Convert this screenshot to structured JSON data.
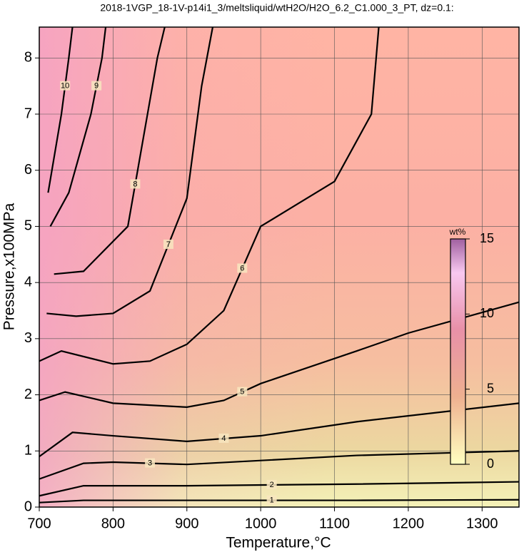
{
  "chart_data": {
    "type": "contour",
    "title": "2018-1VGP_18-1V-p14i1_3/meltsliquid/wtH2O/H2O_6.2_C1.000_3_PT, dz=0.1:",
    "x_label": "Temperature,°C",
    "y_label": "Pressure,x100MPa",
    "xlim": [
      700,
      1350
    ],
    "ylim": [
      0,
      8.55
    ],
    "xticks": [
      700,
      800,
      900,
      1000,
      1100,
      1200,
      1300
    ],
    "yticks": [
      0,
      1,
      2,
      3,
      4,
      5,
      6,
      7,
      8
    ],
    "grid": true,
    "contours": [
      {
        "level": 1,
        "x": [
          700,
          760,
          900,
          1130,
          1350
        ],
        "y": [
          0.08,
          0.12,
          0.12,
          0.12,
          0.13
        ]
      },
      {
        "level": 2,
        "x": [
          700,
          760,
          900,
          1130,
          1350
        ],
        "y": [
          0.2,
          0.38,
          0.38,
          0.41,
          0.45
        ]
      },
      {
        "level": 3,
        "x": [
          700,
          760,
          800,
          900,
          1130,
          1350
        ],
        "y": [
          0.5,
          0.78,
          0.8,
          0.76,
          0.92,
          1.0
        ]
      },
      {
        "level": 4,
        "x": [
          700,
          745,
          800,
          900,
          1000,
          1130,
          1350
        ],
        "y": [
          0.9,
          1.33,
          1.27,
          1.17,
          1.27,
          1.52,
          1.85
        ]
      },
      {
        "level": 5,
        "x": [
          700,
          735,
          800,
          900,
          950,
          1000,
          1130,
          1200,
          1350
        ],
        "y": [
          1.9,
          2.05,
          1.85,
          1.78,
          1.9,
          2.2,
          2.78,
          3.1,
          3.65
        ]
      },
      {
        "level": 6,
        "x": [
          700,
          730,
          800,
          850,
          900,
          950,
          1000,
          1050,
          1100,
          1150,
          1160
        ],
        "y": [
          2.6,
          2.78,
          2.55,
          2.6,
          2.9,
          3.5,
          5.0,
          5.4,
          5.8,
          7.0,
          8.55
        ]
      },
      {
        "level": 7,
        "x": [
          710,
          750,
          800,
          850,
          900,
          920,
          935
        ],
        "y": [
          3.45,
          3.4,
          3.45,
          3.85,
          5.5,
          7.5,
          8.55
        ]
      },
      {
        "level": 8,
        "x": [
          720,
          760,
          820,
          840,
          860,
          870
        ],
        "y": [
          4.15,
          4.2,
          5.0,
          6.5,
          8.0,
          8.55
        ]
      },
      {
        "level": 9,
        "x": [
          715,
          740,
          770,
          785,
          790
        ],
        "y": [
          5.0,
          5.6,
          7.0,
          8.0,
          8.55
        ]
      },
      {
        "level": 10,
        "x": [
          712,
          730,
          740,
          745
        ],
        "y": [
          5.6,
          7.0,
          8.0,
          8.55
        ]
      }
    ],
    "colorbar": {
      "label": "wt%",
      "lim": [
        0,
        15
      ],
      "ticks": [
        0,
        5,
        10,
        15
      ]
    }
  }
}
